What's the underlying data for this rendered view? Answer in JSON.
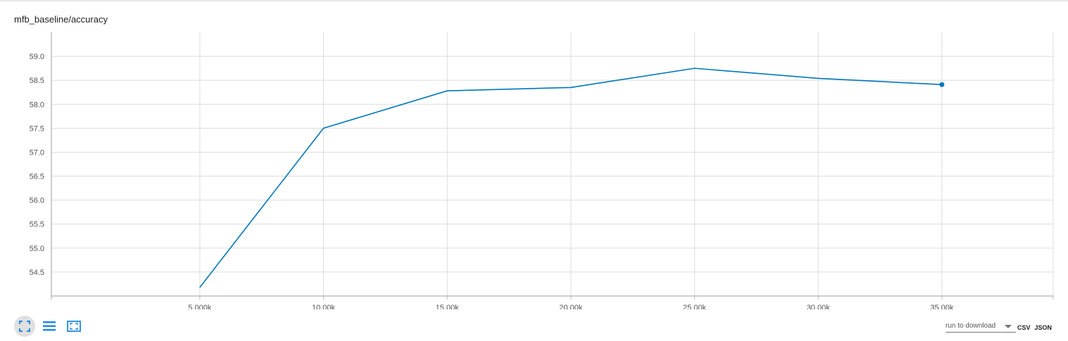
{
  "card": {
    "title": "mfb_baseline/accuracy"
  },
  "chart_data": {
    "type": "line",
    "title": "mfb_baseline/accuracy",
    "xlabel": "",
    "ylabel": "",
    "x": [
      5000,
      10000,
      15000,
      20000,
      25000,
      30000,
      35000
    ],
    "series": [
      {
        "values": [
          54.18,
          57.5,
          58.28,
          58.35,
          58.75,
          58.54,
          58.41
        ],
        "color": "#0077bb"
      }
    ],
    "xlim": [
      -1000,
      39500
    ],
    "ylim": [
      54.0,
      59.5
    ],
    "xticks": [
      5000,
      10000,
      15000,
      20000,
      25000,
      30000,
      35000
    ],
    "xtick_labels": [
      "5.000k",
      "10.00k",
      "15.00k",
      "20.00k",
      "25.00k",
      "30.00k",
      "35.00k"
    ],
    "yticks": [
      54.5,
      55.0,
      55.5,
      56.0,
      56.5,
      57.0,
      57.5,
      58.0,
      58.5,
      59.0
    ],
    "ytick_labels": [
      "54.5",
      "55.0",
      "55.5",
      "56.0",
      "56.5",
      "57.0",
      "57.5",
      "58.0",
      "58.5",
      "59.0"
    ],
    "grid": true,
    "last_point_marker": true
  },
  "toolbar": {
    "icons": [
      "fit-domain-icon",
      "log-scale-icon",
      "expand-icon"
    ]
  },
  "download": {
    "select_label": "run to download",
    "csv_label": "CSV",
    "json_label": "JSON"
  }
}
